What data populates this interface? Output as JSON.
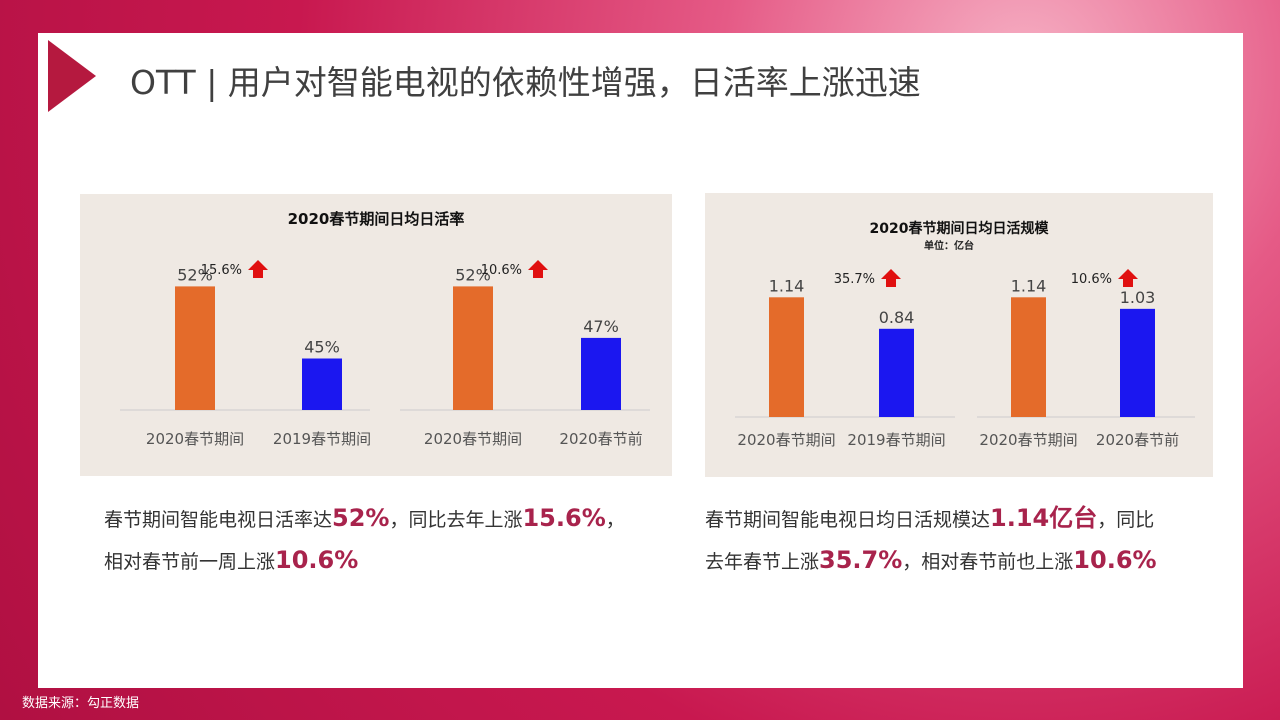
{
  "title": "OTT | 用户对智能电视的依赖性增强，日活率上涨迅速",
  "source": "数据来源：勾正数据",
  "colors": {
    "accent": "#b5193f",
    "bar_2020": "#e46b2a",
    "bar_compare": "#1b17f0",
    "highlight": "#a8234c"
  },
  "captions": [
    {
      "l1": [
        "春节期间智能电视日活率达",
        "52%",
        "，同比去年上涨",
        "15.6%",
        "，"
      ],
      "l2": [
        "相对春节前一周上涨",
        "10.6%"
      ]
    },
    {
      "l1": [
        "春节期间智能电视日均日活规模达",
        "1.14亿台",
        "，同比"
      ],
      "l2": [
        "去年春节上涨",
        "35.7%",
        "，相对春节前也上涨",
        "10.6%"
      ]
    }
  ],
  "chart_data": [
    {
      "type": "bar",
      "title": "2020春节期间日均日活率",
      "subtitle": "",
      "categories": [
        "2020春节期间",
        "2019春节期间",
        "2020春节期间",
        "2020春节前"
      ],
      "values": [
        52,
        45,
        52,
        47
      ],
      "labels": [
        "52%",
        "45%",
        "52%",
        "47%"
      ],
      "growth": [
        {
          "label": "15.6%",
          "direction": "up"
        },
        {
          "label": "10.6%",
          "direction": "up"
        }
      ]
    },
    {
      "type": "bar",
      "title": "2020春节期间日均日活规模",
      "subtitle": "单位：亿台",
      "categories": [
        "2020春节期间",
        "2019春节期间",
        "2020春节期间",
        "2020春节前"
      ],
      "values": [
        1.14,
        0.84,
        1.14,
        1.03
      ],
      "labels": [
        "1.14",
        "0.84",
        "1.14",
        "1.03"
      ],
      "growth": [
        {
          "label": "35.7%",
          "direction": "up"
        },
        {
          "label": "10.6%",
          "direction": "up"
        }
      ]
    }
  ]
}
